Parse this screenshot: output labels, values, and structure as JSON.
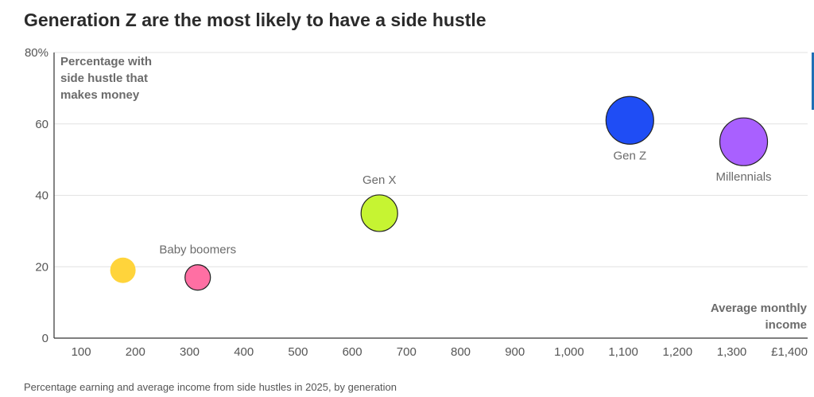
{
  "title": "Generation Z are the most likely to have a side hustle",
  "caption": "Percentage earning and average income from side hustles in 2025, by generation",
  "colors": {
    "text": "#2b2b2b",
    "grid": "#e2e2e2",
    "axis": "#333333",
    "accent": "#1f6fb5"
  },
  "chart_data": {
    "type": "scatter",
    "ylabel": [
      "Percentage with",
      "side hustle that",
      "makes money"
    ],
    "xlabel": [
      "Average monthly",
      "income"
    ],
    "xlim": [
      50,
      1440
    ],
    "ylim": [
      0,
      80
    ],
    "x_ticks": [
      100,
      200,
      300,
      400,
      500,
      600,
      700,
      800,
      900,
      1000,
      1100,
      1200,
      1300,
      1400
    ],
    "x_tick_labels": [
      "100",
      "200",
      "300",
      "400",
      "500",
      "600",
      "700",
      "800",
      "900",
      "1,000",
      "1,100",
      "1,200",
      "1,300",
      "£1,400"
    ],
    "y_ticks": [
      0,
      20,
      40,
      60,
      80
    ],
    "y_tick_labels": [
      "0",
      "20",
      "40",
      "60",
      "80%"
    ],
    "grid": "horizontal",
    "series": [
      {
        "name": "",
        "x": 177,
        "y": 19,
        "color": "#ffd43b",
        "outline": false,
        "size": "small",
        "label_pos": "none"
      },
      {
        "name": "Baby boomers",
        "x": 315,
        "y": 17,
        "color": "#ff6fa3",
        "outline": true,
        "size": "small",
        "label_pos": "above"
      },
      {
        "name": "Gen X",
        "x": 650,
        "y": 35,
        "color": "#c6f432",
        "outline": true,
        "size": "medium",
        "label_pos": "above"
      },
      {
        "name": "Gen Z",
        "x": 1112,
        "y": 61,
        "color": "#1f4df5",
        "outline": true,
        "size": "large",
        "label_pos": "below"
      },
      {
        "name": "Millennials",
        "x": 1322,
        "y": 55,
        "color": "#a960ff",
        "outline": true,
        "size": "large",
        "label_pos": "below"
      }
    ]
  }
}
